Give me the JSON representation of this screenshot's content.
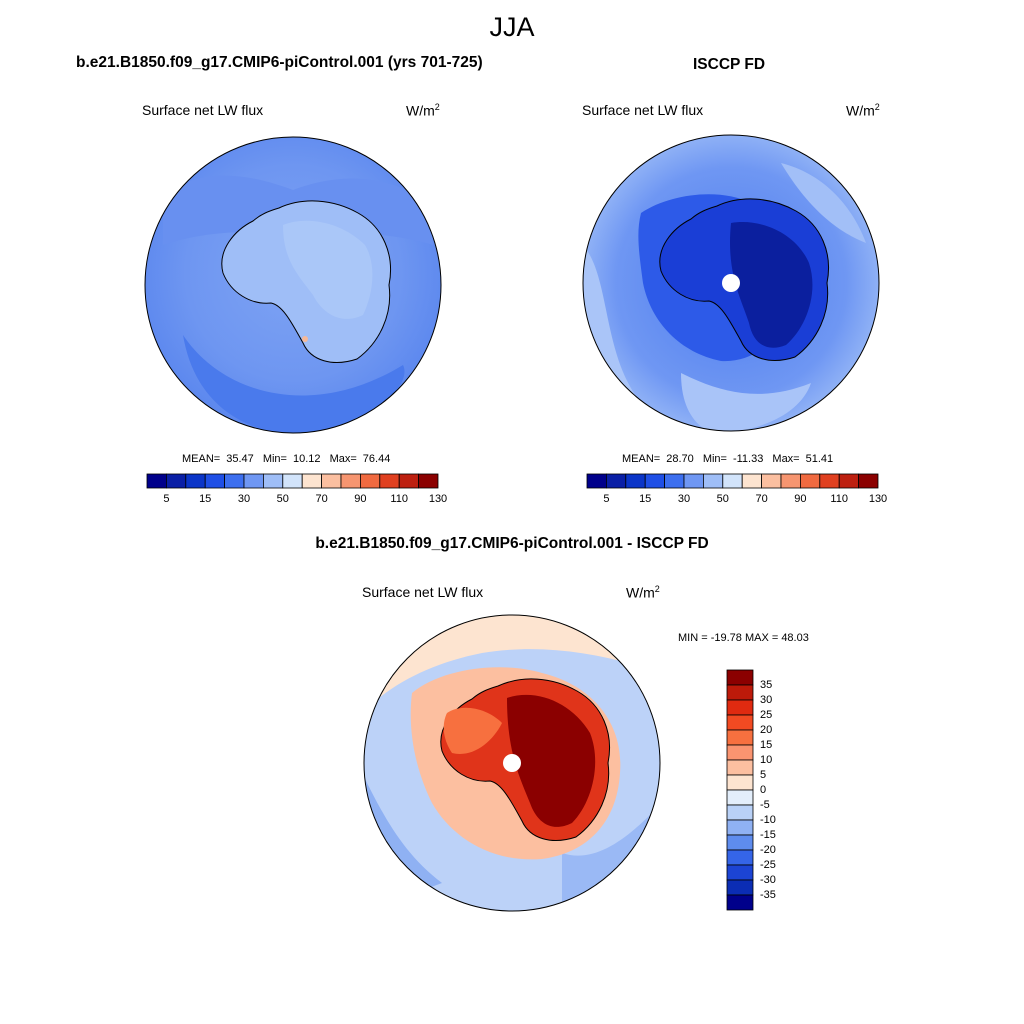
{
  "figure": {
    "title": "JJA",
    "variable_label": "Surface net LW flux",
    "units_base": "W/m",
    "units_exp": "2"
  },
  "panels": [
    {
      "title": "b.e21.B1850.f09_g17.CMIP6-piControl.001 (yrs 701-725)",
      "mean_label": "MEAN=",
      "mean": "35.47",
      "min_label": "Min=",
      "min": "10.12",
      "max_label": "Max=",
      "max": "76.44"
    },
    {
      "title": "ISCCP FD",
      "mean_label": "MEAN=",
      "mean": "28.70",
      "min_label": "Min=",
      "min": "-11.33",
      "max_label": "Max=",
      "max": "51.41"
    },
    {
      "title": "b.e21.B1850.f09_g17.CMIP6-piControl.001 - ISCCP FD",
      "stats_text": "MIN = -19.78 MAX =  48.03"
    }
  ],
  "chart_data": [
    {
      "type": "heatmap",
      "projection": "south-polar-stereographic",
      "title": "b.e21.B1850.f09_g17.CMIP6-piControl.001 (yrs 701-725)",
      "variable": "Surface net LW flux",
      "units": "W/m2",
      "stats": {
        "mean": 35.47,
        "min": 10.12,
        "max": 76.44
      },
      "colorbar": {
        "orientation": "horizontal",
        "tick_labels": [
          "5",
          "15",
          "30",
          "50",
          "70",
          "90",
          "110",
          "130"
        ],
        "colors": [
          "#00008b",
          "#0a1fa6",
          "#0b35c8",
          "#1f4fe6",
          "#3d6fef",
          "#6f97f3",
          "#9fbef7",
          "#d2e4fb",
          "#fde4d0",
          "#fbbfa0",
          "#f69570",
          "#f06a40",
          "#e04020",
          "#bd2010",
          "#8b0000"
        ]
      }
    },
    {
      "type": "heatmap",
      "projection": "south-polar-stereographic",
      "title": "ISCCP FD",
      "variable": "Surface net LW flux",
      "units": "W/m2",
      "stats": {
        "mean": 28.7,
        "min": -11.33,
        "max": 51.41
      },
      "colorbar": {
        "orientation": "horizontal",
        "tick_labels": [
          "5",
          "15",
          "30",
          "50",
          "70",
          "90",
          "110",
          "130"
        ],
        "colors": [
          "#00008b",
          "#0a1fa6",
          "#0b35c8",
          "#1f4fe6",
          "#3d6fef",
          "#6f97f3",
          "#9fbef7",
          "#d2e4fb",
          "#fde4d0",
          "#fbbfa0",
          "#f69570",
          "#f06a40",
          "#e04020",
          "#bd2010",
          "#8b0000"
        ]
      }
    },
    {
      "type": "heatmap",
      "projection": "south-polar-stereographic",
      "title": "b.e21.B1850.f09_g17.CMIP6-piControl.001 - ISCCP FD",
      "variable": "Surface net LW flux",
      "units": "W/m2",
      "stats": {
        "min": -19.78,
        "max": 48.03
      },
      "colorbar": {
        "orientation": "vertical",
        "tick_labels": [
          "35",
          "30",
          "25",
          "20",
          "15",
          "10",
          "5",
          "0",
          "-5",
          "-10",
          "-15",
          "-20",
          "-25",
          "-30",
          "-35"
        ],
        "colors": [
          "#8b0000",
          "#bd1a0a",
          "#e02a10",
          "#f24a22",
          "#f7703f",
          "#fa9470",
          "#fcbfa0",
          "#fde4d0",
          "#e3eefb",
          "#b9d1f7",
          "#8fb1f3",
          "#5e8cee",
          "#3565e8",
          "#1c44d4",
          "#0b2db4",
          "#00008b"
        ]
      }
    }
  ]
}
